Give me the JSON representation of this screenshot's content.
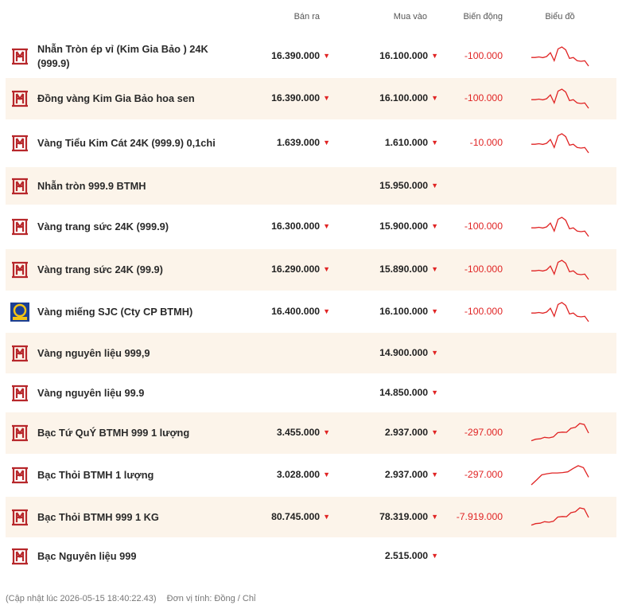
{
  "header": {
    "sell": "Bán ra",
    "buy": "Mua vào",
    "change": "Biến động",
    "chart": "Biểu đồ"
  },
  "colors": {
    "accent_red": "#e02424",
    "row_alt_bg": "#fcf4ea",
    "logo_red": "#b7272b",
    "sjc_blue": "#1c3f94",
    "sjc_gold": "#f2c314"
  },
  "rows": [
    {
      "logo": "btmh-logo-icon",
      "name": "Nhẫn Tròn ép vỉ (Kim Gia Bảo ) 24K (999.9)",
      "sell": "16.390.000",
      "buy": "16.100.000",
      "change": "-100.000",
      "trend": "gold",
      "alt": false
    },
    {
      "logo": "btmh-logo-icon",
      "name": "Đồng vàng Kim Gia Bảo hoa sen",
      "sell": "16.390.000",
      "buy": "16.100.000",
      "change": "-100.000",
      "trend": "gold",
      "alt": true
    },
    {
      "logo": "btmh-logo-icon",
      "name": "Vàng Tiểu Kim Cát 24K (999.9) 0,1chi",
      "sell": "1.639.000",
      "buy": "1.610.000",
      "change": "-10.000",
      "trend": "gold",
      "alt": false
    },
    {
      "logo": "btmh-logo-icon",
      "name": "Nhẫn tròn 999.9 BTMH",
      "sell": "",
      "buy": "15.950.000",
      "change": "",
      "trend": "",
      "alt": true
    },
    {
      "logo": "btmh-logo-icon",
      "name": "Vàng trang sức 24K (999.9)",
      "sell": "16.300.000",
      "buy": "15.900.000",
      "change": "-100.000",
      "trend": "gold",
      "alt": false
    },
    {
      "logo": "btmh-logo-icon",
      "name": "Vàng trang sức 24K (99.9)",
      "sell": "16.290.000",
      "buy": "15.890.000",
      "change": "-100.000",
      "trend": "gold",
      "alt": true
    },
    {
      "logo": "sjc-logo-icon",
      "name": "Vàng miếng SJC (Cty CP BTMH)",
      "sell": "16.400.000",
      "buy": "16.100.000",
      "change": "-100.000",
      "trend": "gold",
      "alt": false
    },
    {
      "logo": "btmh-logo-icon",
      "name": "Vàng nguyên liệu 999,9",
      "sell": "",
      "buy": "14.900.000",
      "change": "",
      "trend": "",
      "alt": true
    },
    {
      "logo": "btmh-logo-icon",
      "name": "Vàng nguyên liệu 99.9",
      "sell": "",
      "buy": "14.850.000",
      "change": "",
      "trend": "",
      "alt": false
    },
    {
      "logo": "btmh-logo-icon",
      "name": "Bạc Tứ QuÝ BTMH 999 1 lượng",
      "sell": "3.455.000",
      "buy": "2.937.000",
      "change": "-297.000",
      "trend": "silver",
      "alt": true
    },
    {
      "logo": "btmh-logo-icon",
      "name": "Bạc Thỏi BTMH 1 lượng",
      "sell": "3.028.000",
      "buy": "2.937.000",
      "change": "-297.000",
      "trend": "silver2",
      "alt": false
    },
    {
      "logo": "btmh-logo-icon",
      "name": "Bạc Thỏi BTMH 999 1 KG",
      "sell": "80.745.000",
      "buy": "78.319.000",
      "change": "-7.919.000",
      "trend": "silver",
      "alt": true
    },
    {
      "logo": "btmh-logo-icon",
      "name": "Bạc Nguyên liệu 999",
      "sell": "",
      "buy": "2.515.000",
      "change": "",
      "trend": "",
      "alt": false
    }
  ],
  "trends": {
    "gold": [
      0.55,
      0.55,
      0.52,
      0.56,
      0.5,
      0.3,
      0.72,
      0.1,
      0.0,
      0.15,
      0.6,
      0.55,
      0.72,
      0.75,
      0.72,
      1.0
    ],
    "silver": [
      0.9,
      0.82,
      0.8,
      0.72,
      0.75,
      0.7,
      0.48,
      0.45,
      0.46,
      0.25,
      0.2,
      0.0,
      0.05,
      0.5
    ],
    "silver2": [
      1.0,
      0.75,
      0.48,
      0.42,
      0.38,
      0.38,
      0.36,
      0.32,
      0.15,
      0.0,
      0.1,
      0.6
    ]
  },
  "footer": {
    "updated": "(Cập nhật lúc 2026-05-15 18:40:22.43)",
    "unit": "Đơn vị tính: Đồng / Chỉ"
  }
}
